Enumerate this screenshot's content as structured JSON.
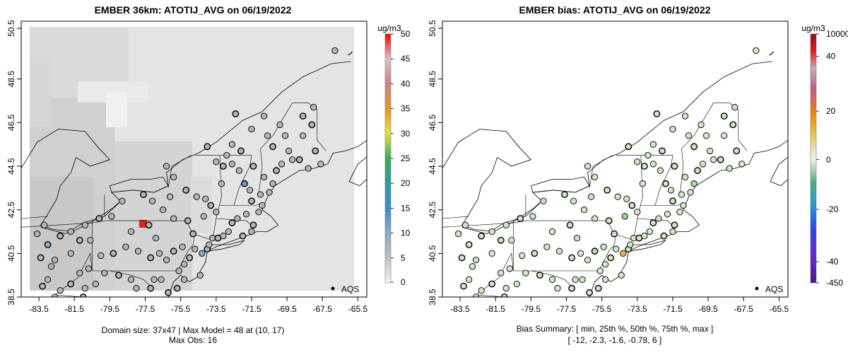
{
  "chart_data": [
    {
      "type": "map",
      "title": "EMBER 36km: ATOTIJ_AVG on 06/19/2022",
      "x_ticks": [
        "-83.5",
        "-81.5",
        "-79.5",
        "-77.5",
        "-75.5",
        "-73.5",
        "-71.5",
        "-69.5",
        "-67.5",
        "-65.5"
      ],
      "y_ticks": [
        "38.5",
        "40.5",
        "42.5",
        "44.5",
        "46.5",
        "48.5",
        "50.5"
      ],
      "xlim": [
        -84.5,
        -65.0
      ],
      "ylim": [
        38.5,
        50.5
      ],
      "legend_label": "AQS",
      "colorbar": {
        "units": "ug/m3",
        "labels": [
          "0",
          "5",
          "10",
          "15",
          "20",
          "25",
          "30",
          "35",
          "40",
          "45",
          "50"
        ],
        "range": [
          0,
          50
        ]
      },
      "caption_line1": "Domain size: 37x47 | Max Model = 48 at (10, 17)",
      "caption_line2": "Max Obs: 16"
    },
    {
      "type": "map",
      "title": "EMBER bias: ATOTIJ_AVG on 06/19/2022",
      "x_ticks": [
        "-83.5",
        "-81.5",
        "-79.5",
        "-77.5",
        "-75.5",
        "-73.5",
        "-71.5",
        "-69.5",
        "-67.5",
        "-65.5"
      ],
      "y_ticks": [
        "38.5",
        "40.5",
        "42.5",
        "44.5",
        "46.5",
        "48.5",
        "50.5"
      ],
      "xlim": [
        -84.5,
        -65.0
      ],
      "ylim": [
        38.5,
        50.5
      ],
      "legend_label": "AQS",
      "colorbar": {
        "units": "ug/m3",
        "labels": [
          "10000",
          "40",
          "20",
          "0",
          "-20",
          "-40",
          "-450"
        ]
      },
      "caption_line1": "Bias Summary: [ min, 25th %, 50th %, 75th %, max ]",
      "caption_line2": "[ -12,   -2.3,   -1.6,   -0.78,   6 ]"
    }
  ],
  "colors": {
    "land_state": "#d2d2d2",
    "land_bg": "#e0e0e0",
    "domain_bg": "#e8e8e8",
    "max_cell": "#e8201c",
    "station_gray": "#b4b4b4",
    "station_green": "#cfe6c4"
  },
  "stations": [
    [
      -83.3,
      39.0
    ],
    [
      -83.0,
      39.3
    ],
    [
      -82.3,
      38.8
    ],
    [
      -81.7,
      39.1
    ],
    [
      -80.9,
      38.9
    ],
    [
      -82.6,
      38.5
    ],
    [
      -81.0,
      38.5
    ],
    [
      -80.3,
      39.1
    ],
    [
      -79.8,
      39.6
    ],
    [
      -79.0,
      39.5
    ],
    [
      -78.3,
      39.3
    ],
    [
      -78.0,
      38.9
    ],
    [
      -77.2,
      38.9
    ],
    [
      -77.0,
      39.3
    ],
    [
      -76.6,
      39.3
    ],
    [
      -76.2,
      38.7
    ],
    [
      -75.6,
      39.7
    ],
    [
      -75.3,
      40.0
    ],
    [
      -75.0,
      40.3
    ],
    [
      -74.7,
      40.7
    ],
    [
      -74.3,
      40.5
    ],
    [
      -74.0,
      40.7
    ],
    [
      -73.9,
      40.9
    ],
    [
      -73.7,
      41.2
    ],
    [
      -73.4,
      41.2
    ],
    [
      -73.1,
      41.3
    ],
    [
      -72.8,
      41.5
    ],
    [
      -72.6,
      41.9
    ],
    [
      -72.3,
      42.1
    ],
    [
      -71.8,
      42.3
    ],
    [
      -71.4,
      41.8
    ],
    [
      -71.1,
      42.4
    ],
    [
      -70.9,
      42.7
    ],
    [
      -71.5,
      42.9
    ],
    [
      -71.0,
      43.2
    ],
    [
      -71.6,
      43.4
    ],
    [
      -71.9,
      43.7
    ],
    [
      -72.2,
      44.3
    ],
    [
      -72.6,
      44.6
    ],
    [
      -73.1,
      44.5
    ],
    [
      -73.5,
      44.7
    ],
    [
      -72.9,
      45.0
    ],
    [
      -71.4,
      44.5
    ],
    [
      -70.8,
      44.0
    ],
    [
      -70.3,
      43.7
    ],
    [
      -70.1,
      44.3
    ],
    [
      -69.8,
      44.6
    ],
    [
      -69.2,
      44.8
    ],
    [
      -68.8,
      44.8
    ],
    [
      -68.3,
      44.4
    ],
    [
      -67.6,
      44.6
    ],
    [
      -67.9,
      45.2
    ],
    [
      -68.6,
      45.9
    ],
    [
      -69.4,
      45.2
    ],
    [
      -70.3,
      45.4
    ],
    [
      -70.6,
      45.9
    ],
    [
      -69.9,
      46.4
    ],
    [
      -68.6,
      46.8
    ],
    [
      -68.0,
      47.2
    ],
    [
      -70.8,
      46.8
    ],
    [
      -72.4,
      46.9
    ],
    [
      -71.5,
      46.2
    ],
    [
      -72.6,
      45.5
    ],
    [
      -74.0,
      45.4
    ],
    [
      -76.3,
      44.5
    ],
    [
      -75.9,
      44.0
    ],
    [
      -75.2,
      43.4
    ],
    [
      -74.6,
      43.1
    ],
    [
      -74.1,
      43.0
    ],
    [
      -73.8,
      42.7
    ],
    [
      -73.5,
      42.4
    ],
    [
      -74.2,
      42.2
    ],
    [
      -75.1,
      42.0
    ],
    [
      -75.9,
      42.1
    ],
    [
      -76.5,
      42.5
    ],
    [
      -77.6,
      43.2
    ],
    [
      -78.8,
      42.9
    ],
    [
      -79.4,
      42.2
    ],
    [
      -80.1,
      42.1
    ],
    [
      -80.9,
      41.8
    ],
    [
      -81.7,
      41.5
    ],
    [
      -82.3,
      41.3
    ],
    [
      -83.2,
      41.8
    ],
    [
      -83.6,
      41.4
    ],
    [
      -83.0,
      40.9
    ],
    [
      -82.6,
      40.2
    ],
    [
      -81.7,
      40.5
    ],
    [
      -81.2,
      41.1
    ],
    [
      -80.6,
      41.1
    ],
    [
      -80.0,
      40.4
    ],
    [
      -79.3,
      40.5
    ],
    [
      -78.6,
      40.8
    ],
    [
      -77.9,
      40.6
    ],
    [
      -77.2,
      40.3
    ],
    [
      -76.7,
      40.5
    ],
    [
      -76.3,
      40.2
    ],
    [
      -75.9,
      40.6
    ],
    [
      -75.4,
      40.8
    ],
    [
      -76.9,
      41.2
    ],
    [
      -77.3,
      41.8
    ],
    [
      -78.3,
      41.5
    ],
    [
      -82.8,
      39.9
    ],
    [
      -83.4,
      40.3
    ],
    [
      -81.2,
      39.6
    ],
    [
      -80.7,
      39.8
    ],
    [
      -75.7,
      38.9
    ],
    [
      -75.3,
      39.3
    ],
    [
      -74.4,
      39.5
    ],
    [
      -74.8,
      41.4
    ],
    [
      -76.1,
      43.1
    ],
    [
      -77.1,
      42.9
    ],
    [
      -72.0,
      41.3
    ],
    [
      -71.5,
      41.5
    ],
    [
      -73.2,
      43.7
    ],
    [
      -72.1,
      45.2
    ],
    [
      -70.5,
      43.3
    ],
    [
      -69.6,
      45.9
    ],
    [
      -68.1,
      46.4
    ],
    [
      -66.8,
      49.8
    ]
  ],
  "bias_colored": [
    {
      "i": 71,
      "c": "#9ed690"
    },
    {
      "i": 20,
      "c": "#e5b24a"
    },
    {
      "i": 44,
      "c": "#a8d99c"
    },
    {
      "i": 96,
      "c": "#b9dfae"
    }
  ],
  "left_colored": [
    {
      "i": 36,
      "c": "#6f9ac0"
    },
    {
      "i": 20,
      "c": "#7ea8cf"
    },
    {
      "i": 84,
      "c": "#87b2d6"
    }
  ]
}
